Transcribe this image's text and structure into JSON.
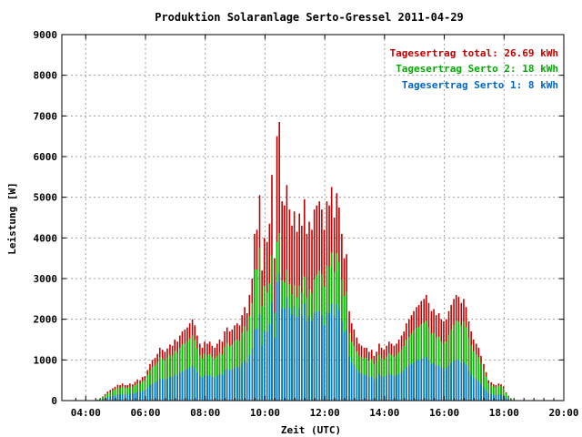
{
  "chart_data": {
    "type": "bar",
    "title": "Produktion Solaranlage Serto-Gressel 2011-04-29",
    "xlabel": "Zeit (UTC)",
    "ylabel": "Leistung [W]",
    "xlim": [
      3.2,
      20.0
    ],
    "ylim": [
      0,
      9000
    ],
    "x_ticks": [
      "04:00",
      "06:00",
      "08:00",
      "10:00",
      "12:00",
      "14:00",
      "16:00",
      "18:00",
      "20:00"
    ],
    "y_ticks": [
      "0",
      "1000",
      "2000",
      "3000",
      "4000",
      "5000",
      "6000",
      "7000",
      "8000",
      "9000"
    ],
    "grid": true,
    "legend_position": "top-right",
    "legend": [
      {
        "label": "Tagesertrag total: 26.69 kWh",
        "color": "#c00000"
      },
      {
        "label": "Tagesertrag Serto 2: 18 kWh",
        "color": "#00aa00"
      },
      {
        "label": "Tagesertrag Serto 1: 8 kWh",
        "color": "#0066cc"
      }
    ],
    "series_colors": {
      "total": "#c00000",
      "serto2": "#00bb00",
      "serto1": "#0077cc"
    },
    "ratio_serto1_of_total": [
      [
        4.5,
        0.35
      ],
      [
        6.0,
        0.42
      ],
      [
        9.0,
        0.44
      ],
      [
        9.8,
        0.42
      ],
      [
        10.3,
        0.44
      ],
      [
        11.0,
        0.5
      ],
      [
        12.0,
        0.44
      ],
      [
        13.0,
        0.5
      ],
      [
        14.5,
        0.44
      ],
      [
        16.0,
        0.4
      ],
      [
        17.5,
        0.36
      ],
      [
        18.2,
        0.35
      ]
    ],
    "ratio_serto2_of_total": [
      [
        4.5,
        0.8
      ],
      [
        6.0,
        0.83
      ],
      [
        7.8,
        0.8
      ],
      [
        8.6,
        0.78
      ],
      [
        9.6,
        0.8
      ],
      [
        10.4,
        0.6
      ],
      [
        11.5,
        0.62
      ],
      [
        12.5,
        0.72
      ],
      [
        13.5,
        0.82
      ],
      [
        15.0,
        0.78
      ],
      [
        16.0,
        0.72
      ],
      [
        17.5,
        0.85
      ],
      [
        18.2,
        0.9
      ]
    ],
    "series": [
      {
        "name": "total",
        "x": [
          4.4,
          4.48,
          4.57,
          4.65,
          4.73,
          4.82,
          4.9,
          4.98,
          5.07,
          5.15,
          5.23,
          5.32,
          5.4,
          5.48,
          5.57,
          5.65,
          5.73,
          5.82,
          5.9,
          5.98,
          6.07,
          6.15,
          6.23,
          6.32,
          6.4,
          6.48,
          6.57,
          6.65,
          6.73,
          6.82,
          6.9,
          6.98,
          7.07,
          7.15,
          7.23,
          7.32,
          7.4,
          7.48,
          7.57,
          7.65,
          7.73,
          7.82,
          7.9,
          7.98,
          8.07,
          8.15,
          8.23,
          8.32,
          8.4,
          8.48,
          8.57,
          8.65,
          8.73,
          8.82,
          8.9,
          8.98,
          9.07,
          9.15,
          9.23,
          9.32,
          9.4,
          9.48,
          9.57,
          9.65,
          9.73,
          9.82,
          9.9,
          9.98,
          10.07,
          10.15,
          10.23,
          10.32,
          10.4,
          10.48,
          10.57,
          10.65,
          10.73,
          10.82,
          10.9,
          10.98,
          11.07,
          11.15,
          11.23,
          11.32,
          11.4,
          11.48,
          11.57,
          11.65,
          11.73,
          11.82,
          11.9,
          11.98,
          12.07,
          12.15,
          12.23,
          12.32,
          12.4,
          12.48,
          12.57,
          12.65,
          12.73,
          12.82,
          12.9,
          12.98,
          13.07,
          13.15,
          13.23,
          13.32,
          13.4,
          13.48,
          13.57,
          13.65,
          13.73,
          13.82,
          13.9,
          13.98,
          14.07,
          14.15,
          14.23,
          14.32,
          14.4,
          14.48,
          14.57,
          14.65,
          14.73,
          14.82,
          14.9,
          14.98,
          15.07,
          15.15,
          15.23,
          15.32,
          15.4,
          15.48,
          15.57,
          15.65,
          15.73,
          15.82,
          15.9,
          15.98,
          16.07,
          16.15,
          16.23,
          16.32,
          16.4,
          16.48,
          16.57,
          16.65,
          16.73,
          16.82,
          16.9,
          16.98,
          17.07,
          17.15,
          17.23,
          17.32,
          17.4,
          17.48,
          17.57,
          17.65,
          17.73,
          17.82,
          17.9,
          17.98,
          18.07,
          18.15,
          18.23
        ],
        "values": [
          20,
          60,
          100,
          160,
          220,
          260,
          300,
          340,
          390,
          380,
          420,
          380,
          380,
          420,
          400,
          460,
          520,
          500,
          580,
          600,
          750,
          900,
          1000,
          1050,
          1150,
          1300,
          1250,
          1200,
          1280,
          1380,
          1350,
          1500,
          1450,
          1600,
          1700,
          1750,
          1800,
          1900,
          2000,
          1850,
          1600,
          1400,
          1300,
          1450,
          1400,
          1450,
          1350,
          1300,
          1400,
          1500,
          1450,
          1700,
          1800,
          1700,
          1750,
          1850,
          1900,
          1850,
          2100,
          2300,
          2150,
          2600,
          3000,
          4100,
          4200,
          5050,
          3200,
          4000,
          3900,
          4350,
          5550,
          3500,
          6500,
          6850,
          4900,
          4800,
          5300,
          4700,
          4300,
          4650,
          4150,
          4600,
          4300,
          4950,
          4100,
          4400,
          4200,
          4700,
          4800,
          4900,
          4700,
          4200,
          4900,
          4800,
          5250,
          4500,
          5100,
          4750,
          4100,
          3500,
          3600,
          2200,
          1900,
          1750,
          1550,
          1400,
          1350,
          1300,
          1300,
          1200,
          1250,
          1100,
          1200,
          1400,
          1300,
          1250,
          1350,
          1450,
          1400,
          1350,
          1400,
          1500,
          1600,
          1700,
          1900,
          2000,
          2100,
          2200,
          2300,
          2350,
          2450,
          2500,
          2600,
          2400,
          2200,
          2250,
          2100,
          2150,
          2000,
          1950,
          2000,
          2200,
          2350,
          2500,
          2600,
          2550,
          2400,
          2500,
          2300,
          1950,
          1700,
          1500,
          1400,
          1300,
          1100,
          900,
          700,
          500,
          450,
          400,
          380,
          420,
          400,
          350,
          200,
          120,
          60
        ]
      }
    ]
  }
}
